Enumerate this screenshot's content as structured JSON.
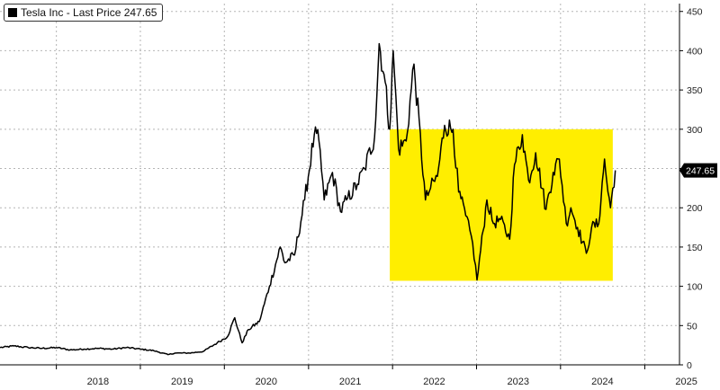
{
  "chart_data": {
    "type": "line",
    "ylim": [
      0,
      460
    ],
    "xlim": [
      "2017-05-01",
      "2025-06-01"
    ],
    "grid": true,
    "legend_position": "top-left",
    "legend_label": "Tesla Inc - Last Price 247.65",
    "y_ticks": [
      0,
      50,
      100,
      150,
      200,
      250,
      300,
      350,
      400,
      450
    ],
    "y_tick_labels": [
      "0",
      "50",
      "100",
      "150",
      "200",
      "250",
      "300",
      "350",
      "400",
      "450"
    ],
    "x_tick_labels": [
      "2018",
      "2019",
      "2020",
      "2021",
      "2022",
      "2023",
      "2024",
      "2025"
    ],
    "last_price_label": "247.65",
    "highlight_box": {
      "x_start": "2021-12-20",
      "x_end": "2024-08-15",
      "y_min": 107,
      "y_max": 300,
      "color": "#ffee00"
    },
    "series": [
      {
        "color": "#000000",
        "points": [
          [
            "2017-05-01",
            22
          ],
          [
            "2017-07-01",
            24
          ],
          [
            "2017-09-01",
            22
          ],
          [
            "2017-11-01",
            21
          ],
          [
            "2018-01-01",
            22
          ],
          [
            "2018-03-01",
            19
          ],
          [
            "2018-05-01",
            20
          ],
          [
            "2018-07-01",
            21
          ],
          [
            "2018-09-01",
            20
          ],
          [
            "2018-11-01",
            22
          ],
          [
            "2019-01-01",
            20
          ],
          [
            "2019-03-01",
            18
          ],
          [
            "2019-05-01",
            13
          ],
          [
            "2019-06-01",
            15
          ],
          [
            "2019-08-01",
            15
          ],
          [
            "2019-10-01",
            17
          ],
          [
            "2019-12-01",
            28
          ],
          [
            "2020-01-15",
            36
          ],
          [
            "2020-02-15",
            60
          ],
          [
            "2020-03-18",
            28
          ],
          [
            "2020-04-15",
            45
          ],
          [
            "2020-06-01",
            55
          ],
          [
            "2020-07-15",
            100
          ],
          [
            "2020-08-31",
            150
          ],
          [
            "2020-09-20",
            130
          ],
          [
            "2020-11-01",
            140
          ],
          [
            "2020-12-15",
            210
          ],
          [
            "2021-01-26",
            293
          ],
          [
            "2021-02-15",
            285
          ],
          [
            "2021-03-10",
            210
          ],
          [
            "2021-04-15",
            245
          ],
          [
            "2021-05-20",
            195
          ],
          [
            "2021-06-15",
            210
          ],
          [
            "2021-08-01",
            230
          ],
          [
            "2021-09-01",
            250
          ],
          [
            "2021-10-15",
            290
          ],
          [
            "2021-11-04",
            409
          ],
          [
            "2021-11-25",
            370
          ],
          [
            "2021-12-20",
            300
          ],
          [
            "2022-01-04",
            400
          ],
          [
            "2022-01-27",
            275
          ],
          [
            "2022-03-01",
            285
          ],
          [
            "2022-04-04",
            383
          ],
          [
            "2022-05-24",
            210
          ],
          [
            "2022-06-15",
            225
          ],
          [
            "2022-07-15",
            240
          ],
          [
            "2022-08-15",
            305
          ],
          [
            "2022-09-21",
            300
          ],
          [
            "2022-10-15",
            220
          ],
          [
            "2022-11-15",
            190
          ],
          [
            "2022-12-15",
            155
          ],
          [
            "2023-01-03",
            108
          ],
          [
            "2023-02-15",
            210
          ],
          [
            "2023-03-15",
            180
          ],
          [
            "2023-04-15",
            185
          ],
          [
            "2023-05-25",
            160
          ],
          [
            "2023-06-15",
            255
          ],
          [
            "2023-07-19",
            293
          ],
          [
            "2023-08-15",
            235
          ],
          [
            "2023-09-15",
            270
          ],
          [
            "2023-10-30",
            198
          ],
          [
            "2023-11-30",
            245
          ],
          [
            "2023-12-27",
            262
          ],
          [
            "2024-01-26",
            180
          ],
          [
            "2024-02-15",
            200
          ],
          [
            "2024-03-15",
            175
          ],
          [
            "2024-04-22",
            142
          ],
          [
            "2024-05-15",
            175
          ],
          [
            "2024-06-15",
            180
          ],
          [
            "2024-07-10",
            262
          ],
          [
            "2024-07-25",
            220
          ],
          [
            "2024-08-05",
            200
          ],
          [
            "2024-08-15",
            225
          ],
          [
            "2024-08-26",
            247.65
          ]
        ]
      }
    ]
  }
}
